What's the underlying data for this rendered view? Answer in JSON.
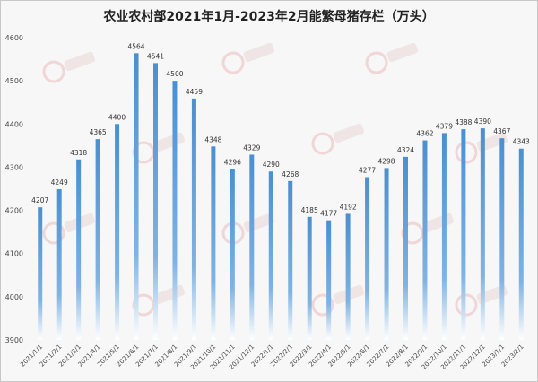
{
  "chart_data": {
    "type": "bar",
    "title": "农业农村部2021年1月-2023年2月能繁母猪存栏（万头）",
    "xlabel": "",
    "ylabel": "",
    "ylim": [
      3900,
      4600
    ],
    "yticks": [
      3900,
      4000,
      4100,
      4200,
      4300,
      4400,
      4500,
      4600
    ],
    "grid": false,
    "legend": "none",
    "bar_color": "#5b9bd5",
    "categories": [
      "2021/1/1",
      "2021/2/1",
      "2021/3/1",
      "2021/4/1",
      "2021/5/1",
      "2021/6/1",
      "2021/7/1",
      "2021/8/1",
      "2021/9/1",
      "2021/10/1",
      "2021/11/1",
      "2021/12/1",
      "2022/1/1",
      "2022/2/1",
      "2022/3/1",
      "2022/4/1",
      "2022/5/1",
      "2022/6/1",
      "2022/7/1",
      "2022/8/1",
      "2022/9/1",
      "2022/10/1",
      "2022/11/1",
      "2022/12/1",
      "2023/1/1",
      "2023/2/1"
    ],
    "values": [
      4207,
      4249,
      4318,
      4365,
      4400,
      4564,
      4541,
      4500,
      4459,
      4348,
      4296,
      4329,
      4290,
      4268,
      4185,
      4177,
      4192,
      4277,
      4298,
      4324,
      4362,
      4379,
      4388,
      4390,
      4367,
      4343
    ]
  }
}
